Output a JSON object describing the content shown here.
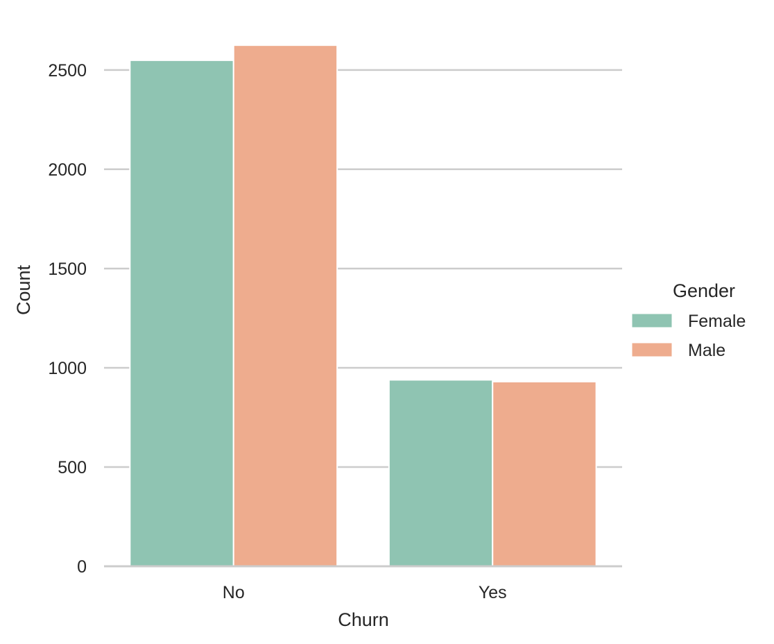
{
  "chart_data": {
    "type": "bar",
    "title": "",
    "xlabel": "Churn",
    "ylabel": "Count",
    "categories": [
      "No",
      "Yes"
    ],
    "series": [
      {
        "name": "Female",
        "values": [
          2549,
          939
        ],
        "color": "#8fc4b2"
      },
      {
        "name": "Male",
        "values": [
          2625,
          930
        ],
        "color": "#eeac8e"
      }
    ],
    "ylim": [
      0,
      2650
    ],
    "yticks": [
      0,
      500,
      1000,
      1500,
      2000,
      2500
    ],
    "grid": "horizontal",
    "legend": {
      "title": "Gender",
      "placement": "right"
    }
  }
}
